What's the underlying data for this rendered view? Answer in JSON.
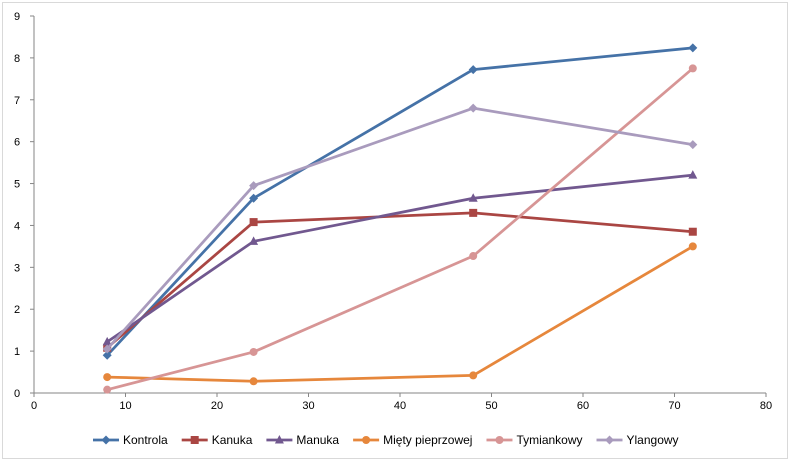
{
  "chart_data": {
    "type": "line",
    "title": "",
    "xlabel": "",
    "ylabel": "",
    "xlim": [
      0,
      80
    ],
    "ylim": [
      0,
      9
    ],
    "xticks": [
      0,
      10,
      20,
      30,
      40,
      50,
      60,
      70,
      80
    ],
    "yticks": [
      0,
      1,
      2,
      3,
      4,
      5,
      6,
      7,
      8,
      9
    ],
    "grid": false,
    "legend_position": "bottom",
    "x": [
      8,
      24,
      48,
      72
    ],
    "series": [
      {
        "name": "Kontrola",
        "values": [
          0.9,
          4.65,
          7.72,
          8.24
        ],
        "color": "#4572a7",
        "marker": "diamond"
      },
      {
        "name": "Kanuka",
        "values": [
          1.08,
          4.08,
          4.3,
          3.85
        ],
        "color": "#aa4643",
        "marker": "square"
      },
      {
        "name": "Manuka",
        "values": [
          1.22,
          3.62,
          4.65,
          5.2
        ],
        "color": "#71588f",
        "marker": "triangle"
      },
      {
        "name": "Mięty pieprzowej",
        "values": [
          0.38,
          0.28,
          0.42,
          3.5
        ],
        "color": "#e6873c",
        "marker": "circle"
      },
      {
        "name": "Tymiankowy",
        "values": [
          0.08,
          0.98,
          3.27,
          7.75
        ],
        "color": "#d79595",
        "marker": "circle"
      },
      {
        "name": "Ylangowy",
        "values": [
          1.05,
          4.95,
          6.8,
          5.93
        ],
        "color": "#a99bbd",
        "marker": "diamond"
      }
    ]
  }
}
